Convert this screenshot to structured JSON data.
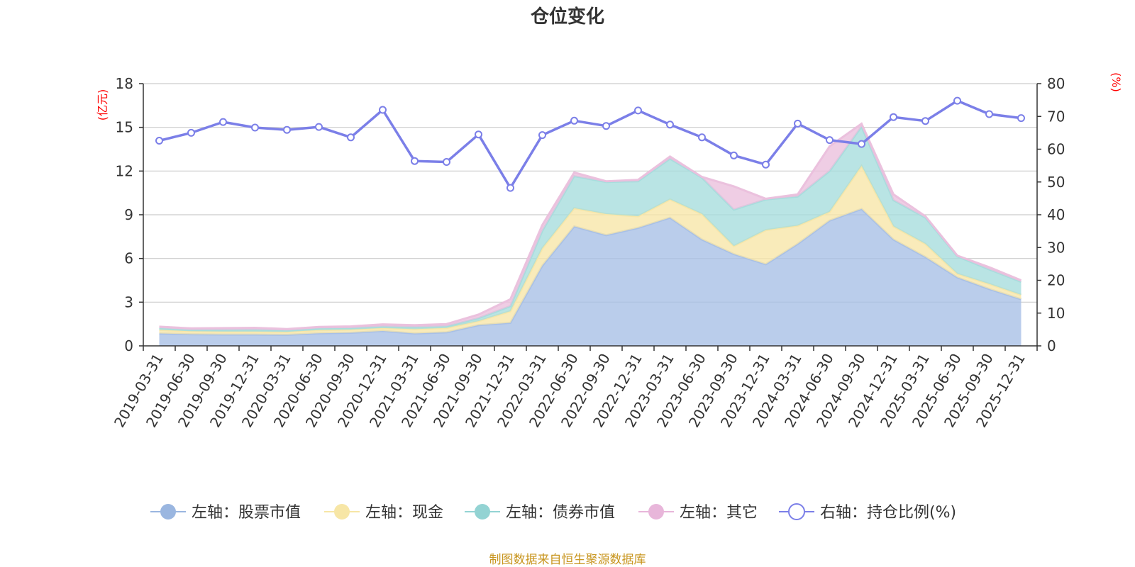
{
  "chart_data": {
    "type": "area",
    "title": "仓位变化",
    "left_axis_unit": "(亿元)",
    "right_axis_unit": "(%)",
    "left_ylim": [
      0,
      18
    ],
    "left_ticks": [
      0,
      3,
      6,
      9,
      12,
      15,
      18
    ],
    "right_ylim": [
      0,
      80
    ],
    "right_ticks": [
      0,
      10,
      20,
      30,
      40,
      50,
      60,
      70,
      80
    ],
    "categories": [
      "2019-03-31",
      "2019-06-30",
      "2019-09-30",
      "2019-12-31",
      "2020-03-31",
      "2020-06-30",
      "2020-09-30",
      "2020-12-31",
      "2021-03-31",
      "2021-06-30",
      "2021-09-30",
      "2021-12-31",
      "2022-03-31",
      "2022-06-30",
      "2022-09-30",
      "2022-12-31",
      "2023-03-31",
      "2023-06-30",
      "2023-09-30",
      "2023-12-31",
      "2024-03-31",
      "2024-06-30",
      "2024-09-30",
      "2024-12-31",
      "2025-03-31",
      "2025-06-30",
      "2025-09-30",
      "2025-12-31"
    ],
    "stacked_series": [
      {
        "name": "左轴：股票市值",
        "axis": "left",
        "color": "#a6bfe6",
        "values": [
          0.85,
          0.8,
          0.78,
          0.78,
          0.76,
          0.86,
          0.9,
          1.02,
          0.85,
          0.93,
          1.42,
          1.58,
          5.5,
          8.2,
          7.6,
          8.1,
          8.8,
          7.3,
          6.3,
          5.6,
          7.0,
          8.6,
          9.4,
          7.3,
          6.1,
          4.7,
          3.9,
          3.2
        ]
      },
      {
        "name": "左轴：现金",
        "axis": "left",
        "color": "#f7e6a6",
        "values": [
          0.25,
          0.2,
          0.2,
          0.2,
          0.2,
          0.22,
          0.22,
          0.2,
          0.3,
          0.3,
          0.28,
          0.8,
          1.2,
          1.25,
          1.45,
          0.8,
          1.25,
          1.75,
          0.55,
          2.35,
          1.25,
          0.6,
          2.95,
          0.9,
          0.9,
          0.25,
          0.35,
          0.3
        ]
      },
      {
        "name": "左轴：债券市值",
        "axis": "left",
        "color": "#a5dcdc",
        "values": [
          0.12,
          0.1,
          0.12,
          0.14,
          0.1,
          0.12,
          0.1,
          0.12,
          0.14,
          0.12,
          0.2,
          0.35,
          1.2,
          2.2,
          2.2,
          2.4,
          2.8,
          2.5,
          2.5,
          2.1,
          2.0,
          2.8,
          2.7,
          1.8,
          1.8,
          1.2,
          1.0,
          0.9
        ]
      },
      {
        "name": "左轴：其它",
        "axis": "left",
        "color": "#eabfdc",
        "values": [
          0.1,
          0.1,
          0.12,
          0.12,
          0.1,
          0.1,
          0.12,
          0.14,
          0.13,
          0.15,
          0.25,
          0.47,
          0.4,
          0.25,
          0.05,
          0.1,
          0.15,
          0.05,
          1.6,
          0.05,
          0.15,
          1.7,
          0.2,
          0.4,
          0.1,
          0.05,
          0.15,
          0.1
        ]
      }
    ],
    "line_series": {
      "name": "右轴：持仓比例(%)",
      "axis": "right",
      "color": "#7b7fe8",
      "values": [
        62.6,
        65.0,
        68.3,
        66.6,
        65.9,
        66.8,
        63.6,
        72.0,
        56.4,
        56.1,
        64.5,
        48.2,
        64.3,
        68.7,
        67.1,
        71.8,
        67.5,
        63.6,
        58.1,
        55.3,
        67.8,
        62.8,
        61.6,
        69.8,
        68.6,
        74.8,
        70.7,
        69.5
      ]
    },
    "legend": [
      {
        "label": "左轴：股票市值",
        "color": "#9ab6e0",
        "kind": "area"
      },
      {
        "label": "左轴：现金",
        "color": "#f7e6a6",
        "kind": "area"
      },
      {
        "label": "左轴：债券市值",
        "color": "#93d3d3",
        "kind": "area"
      },
      {
        "label": "左轴：其它",
        "color": "#e8b6da",
        "kind": "area"
      },
      {
        "label": "右轴：持仓比例(%)",
        "color": "#7b7fe8",
        "kind": "line"
      }
    ],
    "source": "制图数据来自恒生聚源数据库"
  },
  "colors": {
    "unit_red": "#ff0000",
    "source_gold": "#c8951e",
    "grid": "#cccccc",
    "axis": "#333333"
  }
}
